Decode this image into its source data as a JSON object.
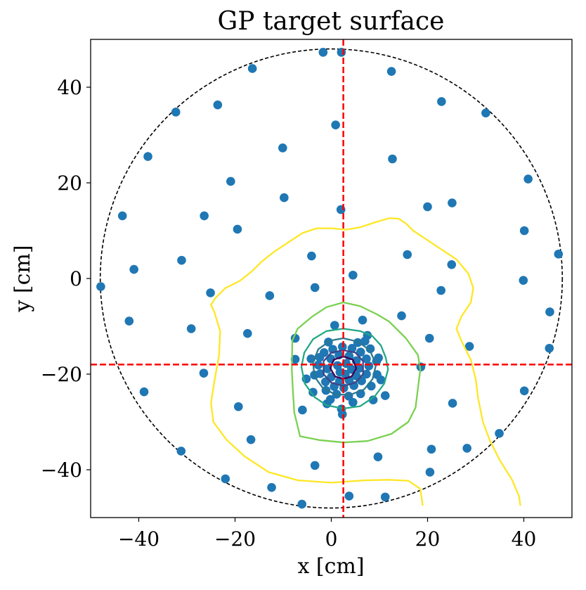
{
  "chart_data": {
    "type": "scatter",
    "title": "GP target surface",
    "xlabel": "x [cm]",
    "ylabel": "y [cm]",
    "xlim": [
      -50,
      50
    ],
    "ylim": [
      -50,
      50
    ],
    "xticks": [
      -40,
      -20,
      0,
      20,
      40
    ],
    "yticks": [
      -40,
      -20,
      0,
      20,
      40
    ],
    "xtick_labels": [
      "−40",
      "−20",
      "0",
      "20",
      "40"
    ],
    "ytick_labels": [
      "−40",
      "−20",
      "0",
      "20",
      "40"
    ],
    "grid": false,
    "boundary_circle": {
      "cx": 0,
      "cy": 0,
      "r": 48,
      "style": "dashed",
      "color": "#000000"
    },
    "target": {
      "x": 2.5,
      "y": -18,
      "color": "#ff0000",
      "style": "dashed"
    },
    "point_color": "#1f77b4",
    "points": [
      [
        -1.7,
        47.3
      ],
      [
        2.1,
        47.3
      ],
      [
        -16.4,
        43.9
      ],
      [
        12.5,
        43.3
      ],
      [
        -32.3,
        34.8
      ],
      [
        -23.6,
        36.3
      ],
      [
        22.9,
        37.0
      ],
      [
        32.1,
        34.6
      ],
      [
        0.9,
        32.1
      ],
      [
        -38.1,
        25.5
      ],
      [
        -10.1,
        27.3
      ],
      [
        12.7,
        25.0
      ],
      [
        -20.9,
        20.3
      ],
      [
        40.9,
        20.8
      ],
      [
        -9.8,
        16.9
      ],
      [
        25.1,
        15.8
      ],
      [
        20.0,
        15.0
      ],
      [
        -43.4,
        13.1
      ],
      [
        -26.4,
        13.1
      ],
      [
        2.0,
        14.4
      ],
      [
        -19.5,
        10.3
      ],
      [
        40.1,
        10.0
      ],
      [
        47.2,
        5.1
      ],
      [
        -4.1,
        4.7
      ],
      [
        15.8,
        5.0
      ],
      [
        -31.1,
        3.8
      ],
      [
        -41.0,
        1.9
      ],
      [
        25.0,
        2.9
      ],
      [
        4.5,
        0.7
      ],
      [
        39.9,
        -0.4
      ],
      [
        -47.9,
        -1.7
      ],
      [
        -3.4,
        -1.9
      ],
      [
        22.8,
        -2.5
      ],
      [
        -25.1,
        -3.0
      ],
      [
        -12.8,
        -3.6
      ],
      [
        45.4,
        -7.0
      ],
      [
        -42.0,
        -8.9
      ],
      [
        14.6,
        -7.8
      ],
      [
        6.5,
        -8.7
      ],
      [
        0.7,
        -9.8
      ],
      [
        -29.1,
        -10.5
      ],
      [
        -17.4,
        -11.5
      ],
      [
        7.5,
        -11.9
      ],
      [
        -7.5,
        -12.5
      ],
      [
        20.4,
        -12.5
      ],
      [
        28.7,
        -14.2
      ],
      [
        45.3,
        -14.6
      ],
      [
        -7.5,
        -16.9
      ],
      [
        18.6,
        -18.5
      ],
      [
        -26.5,
        -19.8
      ],
      [
        -5.2,
        -21.0
      ],
      [
        -38.9,
        -23.7
      ],
      [
        40.1,
        -23.5
      ],
      [
        11.2,
        -24.5
      ],
      [
        -19.3,
        -26.8
      ],
      [
        -0.9,
        -26.2
      ],
      [
        25.2,
        -26.1
      ],
      [
        -6.0,
        -27.5
      ],
      [
        2.3,
        -28.4
      ],
      [
        2.1,
        -27.3
      ],
      [
        -16.7,
        -33.7
      ],
      [
        34.9,
        -32.4
      ],
      [
        -31.2,
        -36.1
      ],
      [
        20.8,
        -35.7
      ],
      [
        28.2,
        -35.5
      ],
      [
        9.7,
        -37.3
      ],
      [
        -3.4,
        -39.1
      ],
      [
        20.5,
        -40.5
      ],
      [
        -22.0,
        -41.9
      ],
      [
        -12.4,
        -43.7
      ],
      [
        3.7,
        -45.5
      ],
      [
        11.2,
        -45.7
      ],
      [
        -6.1,
        -47.2
      ],
      [
        -1.5,
        -15.5
      ],
      [
        0.3,
        -14.8
      ],
      [
        2.3,
        -14.3
      ],
      [
        4.3,
        -14.6
      ],
      [
        6.1,
        -15.4
      ],
      [
        7.3,
        -16.8
      ],
      [
        7.8,
        -18.3
      ],
      [
        7.3,
        -20.0
      ],
      [
        6.3,
        -21.4
      ],
      [
        4.7,
        -22.4
      ],
      [
        2.6,
        -22.9
      ],
      [
        0.6,
        -22.6
      ],
      [
        -1.2,
        -21.6
      ],
      [
        -2.3,
        -19.9
      ],
      [
        -2.7,
        -18.1
      ],
      [
        -2.4,
        -16.5
      ],
      [
        -0.1,
        -16.8
      ],
      [
        1.6,
        -16.0
      ],
      [
        3.7,
        -16.2
      ],
      [
        5.2,
        -17.2
      ],
      [
        5.8,
        -18.8
      ],
      [
        5.2,
        -20.4
      ],
      [
        3.7,
        -21.3
      ],
      [
        1.7,
        -21.5
      ],
      [
        0.0,
        -20.6
      ],
      [
        -0.8,
        -18.9
      ],
      [
        1.3,
        -18.2
      ],
      [
        3.1,
        -17.8
      ],
      [
        4.2,
        -19.0
      ],
      [
        2.9,
        -20.0
      ],
      [
        1.8,
        -19.6
      ],
      [
        -1.1,
        -23.4
      ],
      [
        1.1,
        -24.2
      ],
      [
        3.6,
        -24.6
      ],
      [
        6.1,
        -24.1
      ],
      [
        8.3,
        -22.5
      ],
      [
        9.5,
        -20.1
      ],
      [
        9.4,
        -17.3
      ],
      [
        8.1,
        -14.7
      ],
      [
        5.5,
        -13.4
      ],
      [
        -3.5,
        -20.2
      ],
      [
        -3.8,
        -23.8
      ],
      [
        -0.2,
        -25.3
      ],
      [
        4.5,
        -25.9
      ],
      [
        8.7,
        -25.4
      ],
      [
        10.3,
        -21.2
      ],
      [
        9.8,
        -16.6
      ],
      [
        7.0,
        -13.1
      ],
      [
        -0.6,
        -13.3
      ],
      [
        -4.2,
        -16.8
      ]
    ],
    "contours": [
      {
        "color": "#fde725",
        "points": [
          [
            19.0,
            -47.5
          ],
          [
            18.5,
            -44.0
          ],
          [
            16.0,
            -42.3
          ],
          [
            12.0,
            -42.1
          ],
          [
            7.0,
            -42.2
          ],
          [
            0.0,
            -42.7
          ],
          [
            -7.0,
            -42.2
          ],
          [
            -13.0,
            -40.5
          ],
          [
            -18.0,
            -37.2
          ],
          [
            -21.8,
            -33.7
          ],
          [
            -24.5,
            -30.0
          ],
          [
            -25.0,
            -26.0
          ],
          [
            -24.2,
            -21.0
          ],
          [
            -23.3,
            -16.0
          ],
          [
            -23.1,
            -11.0
          ],
          [
            -24.3,
            -7.0
          ],
          [
            -25.0,
            -5.5
          ],
          [
            -24.0,
            -4.0
          ],
          [
            -22.0,
            -2.0
          ],
          [
            -19.0,
            -0.5
          ],
          [
            -16.5,
            1.5
          ],
          [
            -14.5,
            3.5
          ],
          [
            -12.0,
            5.5
          ],
          [
            -9.0,
            7.5
          ],
          [
            -6.0,
            9.5
          ],
          [
            -3.0,
            10.5
          ],
          [
            0.0,
            10.5
          ],
          [
            3.0,
            10.2
          ],
          [
            6.0,
            10.7
          ],
          [
            9.0,
            11.7
          ],
          [
            12.0,
            12.6
          ],
          [
            14.0,
            12.5
          ],
          [
            15.5,
            11.5
          ],
          [
            17.0,
            10.0
          ],
          [
            20.0,
            8.0
          ],
          [
            23.0,
            6.0
          ],
          [
            26.0,
            4.0
          ],
          [
            28.5,
            1.0
          ],
          [
            29.5,
            -2.0
          ],
          [
            29.0,
            -5.0
          ],
          [
            27.0,
            -8.0
          ],
          [
            26.0,
            -10.5
          ],
          [
            27.0,
            -13.0
          ],
          [
            29.0,
            -17.0
          ],
          [
            30.0,
            -21.0
          ],
          [
            30.5,
            -25.0
          ],
          [
            31.5,
            -30.0
          ],
          [
            33.0,
            -34.0
          ],
          [
            35.0,
            -38.0
          ],
          [
            37.5,
            -42.0
          ],
          [
            39.0,
            -45.5
          ],
          [
            39.3,
            -47.5
          ]
        ]
      },
      {
        "color": "#7ad151",
        "points": [
          [
            2.5,
            -5.0
          ],
          [
            6.0,
            -5.8
          ],
          [
            9.5,
            -7.5
          ],
          [
            12.0,
            -9.0
          ],
          [
            15.5,
            -12.5
          ],
          [
            18.0,
            -16.0
          ],
          [
            18.5,
            -19.0
          ],
          [
            18.0,
            -23.0
          ],
          [
            17.5,
            -27.0
          ],
          [
            16.0,
            -30.0
          ],
          [
            12.5,
            -32.5
          ],
          [
            7.5,
            -34.0
          ],
          [
            2.5,
            -34.3
          ],
          [
            -2.5,
            -33.8
          ],
          [
            -6.5,
            -33.0
          ],
          [
            -7.7,
            -28.0
          ],
          [
            -8.0,
            -23.0
          ],
          [
            -8.2,
            -19.0
          ],
          [
            -8.1,
            -13.0
          ],
          [
            -7.0,
            -10.5
          ],
          [
            -4.0,
            -8.0
          ],
          [
            -1.0,
            -6.0
          ]
        ]
      },
      {
        "color": "#22a884",
        "points": [
          [
            2.5,
            -10.5
          ],
          [
            6.0,
            -11.0
          ],
          [
            8.5,
            -12.0
          ],
          [
            10.3,
            -14.0
          ],
          [
            11.3,
            -16.5
          ],
          [
            11.8,
            -19.0
          ],
          [
            11.0,
            -22.0
          ],
          [
            9.0,
            -24.7
          ],
          [
            6.0,
            -26.7
          ],
          [
            2.5,
            -27.2
          ],
          [
            -1.0,
            -26.5
          ],
          [
            -3.5,
            -24.8
          ],
          [
            -5.5,
            -22.0
          ],
          [
            -6.2,
            -18.5
          ],
          [
            -5.6,
            -15.5
          ],
          [
            -3.8,
            -12.7
          ],
          [
            -1.0,
            -11.0
          ]
        ]
      },
      {
        "color": "#2a788e",
        "points": [
          [
            2.5,
            -12.5
          ],
          [
            5.5,
            -13.2
          ],
          [
            8.0,
            -15.0
          ],
          [
            9.3,
            -18.0
          ],
          [
            8.6,
            -21.0
          ],
          [
            6.8,
            -23.2
          ],
          [
            4.0,
            -24.3
          ],
          [
            1.0,
            -24.3
          ],
          [
            -1.7,
            -23.0
          ],
          [
            -3.5,
            -20.5
          ],
          [
            -3.8,
            -17.5
          ],
          [
            -2.7,
            -14.8
          ],
          [
            -0.2,
            -13.0
          ]
        ]
      },
      {
        "color": "#414487",
        "points": [
          [
            2.5,
            -15.0
          ],
          [
            5.0,
            -15.5
          ],
          [
            6.6,
            -17.3
          ],
          [
            6.6,
            -20.0
          ],
          [
            5.0,
            -21.8
          ],
          [
            2.5,
            -22.5
          ],
          [
            0.0,
            -21.8
          ],
          [
            -1.6,
            -20.0
          ],
          [
            -1.6,
            -17.3
          ],
          [
            0.0,
            -15.5
          ]
        ]
      },
      {
        "color": "#440154",
        "points": [
          [
            2.5,
            -16.3
          ],
          [
            4.5,
            -17.0
          ],
          [
            5.2,
            -18.8
          ],
          [
            4.2,
            -20.5
          ],
          [
            2.5,
            -21.0
          ],
          [
            0.8,
            -20.5
          ],
          [
            -0.2,
            -18.8
          ],
          [
            0.5,
            -17.0
          ]
        ]
      }
    ]
  }
}
